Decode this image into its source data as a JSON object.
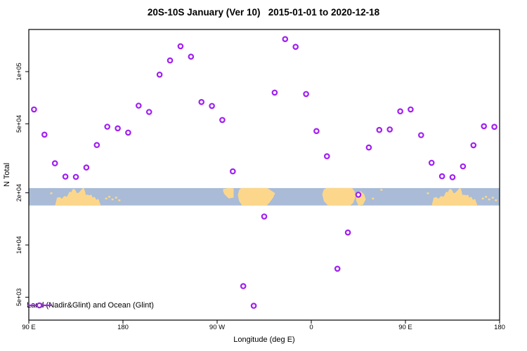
{
  "title": "20S-10S January (Ver 10)   2015-01-01 to 2020-12-18",
  "legend": {
    "label": "Land (Nadir&Glint) and Ocean (Glint)"
  },
  "colors": {
    "point": "#A020F0",
    "ocean": "#A9BBD6",
    "land": "#FCD78B",
    "axis": "#000000"
  },
  "chart_data": {
    "type": "scatter",
    "title": "20S-10S January (Ver 10)   2015-01-01 to 2020-12-18",
    "xlabel": "Longitude (deg E)",
    "ylabel": "N Total",
    "marker": "open-circle",
    "x_axis": {
      "min": 90,
      "max": 540,
      "note": "longitude axis wraps: 90E through 180, 90W, 0, 90E to 180 again",
      "ticks": [
        {
          "value": 90,
          "label": "90 E"
        },
        {
          "value": 180,
          "label": "180"
        },
        {
          "value": 270,
          "label": "90 W"
        },
        {
          "value": 360,
          "label": "0"
        },
        {
          "value": 450,
          "label": "90 E"
        },
        {
          "value": 540,
          "label": "180"
        }
      ]
    },
    "y_axis": {
      "scale": "log10",
      "ticks": [
        {
          "value": 5000,
          "label": "5e+03"
        },
        {
          "value": 10000,
          "label": "1e+04"
        },
        {
          "value": 20000,
          "label": "2e+04"
        },
        {
          "value": 50000,
          "label": "5e+04"
        },
        {
          "value": 100000,
          "label": "1e+05"
        }
      ]
    },
    "points": [
      [
        95,
        60500
      ],
      [
        105,
        43300
      ],
      [
        115,
        29600
      ],
      [
        125,
        24800
      ],
      [
        135,
        24700
      ],
      [
        145,
        28000
      ],
      [
        155,
        37700
      ],
      [
        165,
        48100
      ],
      [
        175,
        47100
      ],
      [
        185,
        44500
      ],
      [
        195,
        63600
      ],
      [
        205,
        58500
      ],
      [
        215,
        96100
      ],
      [
        225,
        116000
      ],
      [
        235,
        140000
      ],
      [
        245,
        122000
      ],
      [
        255,
        66800
      ],
      [
        265,
        63400
      ],
      [
        275,
        52600
      ],
      [
        285,
        26600
      ],
      [
        295,
        5790
      ],
      [
        305,
        4460
      ],
      [
        315,
        14600
      ],
      [
        325,
        75700
      ],
      [
        335,
        154000
      ],
      [
        345,
        139000
      ],
      [
        355,
        74300
      ],
      [
        365,
        45400
      ],
      [
        375,
        32500
      ],
      [
        385,
        7300
      ],
      [
        395,
        11800
      ],
      [
        405,
        19500
      ],
      [
        415,
        36500
      ],
      [
        425,
        46100
      ],
      [
        435,
        46400
      ],
      [
        445,
        59000
      ],
      [
        455,
        60500
      ],
      [
        465,
        43000
      ],
      [
        475,
        29800
      ],
      [
        485,
        24900
      ],
      [
        495,
        24600
      ],
      [
        505,
        28400
      ],
      [
        515,
        37600
      ],
      [
        525,
        48400
      ],
      [
        535,
        48000
      ]
    ],
    "map_band": {
      "description": "world map strip of the 20S-10S latitude band drawn across the plot",
      "top_value": 21300,
      "bottom_value": 16900,
      "polygons": [
        {
          "name": "australia",
          "offsets": [
            0,
            360
          ],
          "points": [
            [
              115.1,
              1
            ],
            [
              117,
              0.55
            ],
            [
              119.6,
              0.52
            ],
            [
              121.5,
              0.62
            ],
            [
              124,
              0.45
            ],
            [
              126.5,
              0.5
            ],
            [
              129,
              0.2
            ],
            [
              130.5,
              0.25
            ],
            [
              131.8,
              0.08
            ],
            [
              133,
              0.05
            ],
            [
              134.3,
              0.1
            ],
            [
              136,
              0.3
            ],
            [
              138,
              0.25
            ],
            [
              140,
              0.12
            ],
            [
              141.7,
              0
            ],
            [
              142.5,
              0
            ],
            [
              143.5,
              0.15
            ],
            [
              144.5,
              0.4
            ],
            [
              146,
              0.38
            ],
            [
              147.8,
              0.42
            ],
            [
              149.8,
              0.38
            ],
            [
              151,
              0.55
            ],
            [
              153,
              0.5
            ],
            [
              154.5,
              0.68
            ],
            [
              156.5,
              0.62
            ],
            [
              158.5,
              0.95
            ],
            [
              158.5,
              1
            ]
          ]
        },
        {
          "name": "south-america-west",
          "offsets": [
            0
          ],
          "points": [
            [
              275.8,
              0.05
            ],
            [
              281,
              0
            ],
            [
              285.8,
              0.02
            ],
            [
              285.8,
              0.55
            ],
            [
              281,
              0.6
            ],
            [
              277,
              0.35
            ],
            [
              275.8,
              0.2
            ]
          ]
        },
        {
          "name": "south-america-main",
          "offsets": [
            0
          ],
          "points": [
            [
              289.8,
              0.4
            ],
            [
              291,
              0.1
            ],
            [
              293,
              0
            ],
            [
              318,
              0
            ],
            [
              321,
              0.12
            ],
            [
              325.5,
              0.3
            ],
            [
              323.5,
              0.55
            ],
            [
              320.5,
              0.8
            ],
            [
              317.5,
              1
            ],
            [
              294,
              1
            ],
            [
              291,
              0.75
            ]
          ]
        },
        {
          "name": "africa",
          "offsets": [
            0
          ],
          "points": [
            [
              370.5,
              0.35
            ],
            [
              372,
              0.08
            ],
            [
              374.5,
              0
            ],
            [
              399,
              0
            ],
            [
              401.5,
              0.2
            ],
            [
              402.3,
              0.5
            ],
            [
              400,
              0.85
            ],
            [
              397,
              1
            ],
            [
              376,
              1
            ],
            [
              372,
              0.75
            ]
          ]
        },
        {
          "name": "madagascar",
          "offsets": [
            0
          ],
          "points": [
            [
              403.5,
              0.3
            ],
            [
              407,
              0.18
            ],
            [
              410.5,
              0.35
            ],
            [
              412,
              0.65
            ],
            [
              409.5,
              0.95
            ],
            [
              405,
              1
            ],
            [
              402.8,
              0.7
            ]
          ]
        }
      ],
      "specks": [
        [
          111.5,
          0.3
        ],
        [
          164,
          0.6
        ],
        [
          167,
          0.5
        ],
        [
          170,
          0.65
        ],
        [
          173.5,
          0.55
        ],
        [
          176.5,
          0.7
        ],
        [
          296,
          0.85
        ],
        [
          305,
          0.88
        ],
        [
          311,
          0.8
        ],
        [
          419,
          0.6
        ],
        [
          427,
          0.1
        ],
        [
          471.5,
          0.3
        ],
        [
          524,
          0.6
        ],
        [
          527,
          0.5
        ],
        [
          530,
          0.65
        ],
        [
          533.5,
          0.55
        ],
        [
          536.5,
          0.7
        ]
      ]
    }
  }
}
